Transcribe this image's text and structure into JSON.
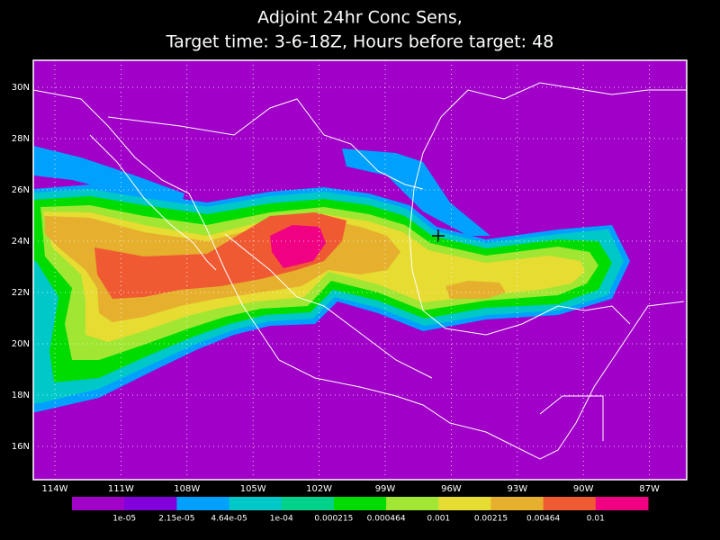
{
  "header": {
    "title_lines": [
      "Adjoint 24hr Conc Sens,",
      "Target time: 3-6-18Z, Hours before target: 48"
    ]
  },
  "map": {
    "lat_labels": [
      "30N",
      "28N",
      "26N",
      "24N",
      "22N",
      "20N",
      "18N",
      "16N"
    ],
    "lon_labels": [
      "114W",
      "111W",
      "108W",
      "105W",
      "102W",
      "99W",
      "96W",
      "93W",
      "90W",
      "87W"
    ]
  },
  "colorbar": {
    "colors": [
      "#a000c8",
      "#8200dc",
      "#00a0ff",
      "#00c8c8",
      "#00d28c",
      "#00dc00",
      "#a0e632",
      "#e6dc32",
      "#e6af2d",
      "#f05a32",
      "#f00082"
    ],
    "labels": [
      "1e-05",
      "2.15e-05",
      "4.64e-05",
      "1e-04",
      "0.000215",
      "0.000464",
      "0.001",
      "0.00215",
      "0.00464",
      "0.01"
    ]
  }
}
